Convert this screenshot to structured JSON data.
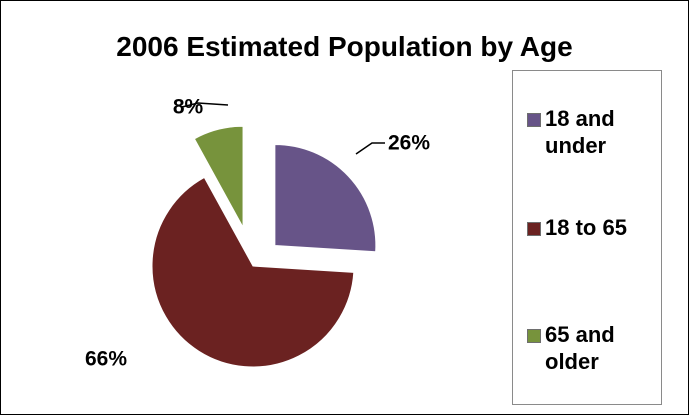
{
  "chart_data": {
    "type": "pie",
    "title": "2006 Estimated Population by Age",
    "categories": [
      "18 and under",
      "18 to 65",
      "65 and older"
    ],
    "values": [
      26,
      66,
      8
    ],
    "data_labels": [
      "26%",
      "66%",
      "8%"
    ],
    "colors": [
      "#675488",
      "#6b2221",
      "#77933c"
    ],
    "exploded": true,
    "legend_position": "right"
  },
  "legend": [
    {
      "label": "18 and under",
      "color": "#675488"
    },
    {
      "label": "18 to 65",
      "color": "#6b2221"
    },
    {
      "label": "65 and older",
      "color": "#77933c"
    }
  ]
}
